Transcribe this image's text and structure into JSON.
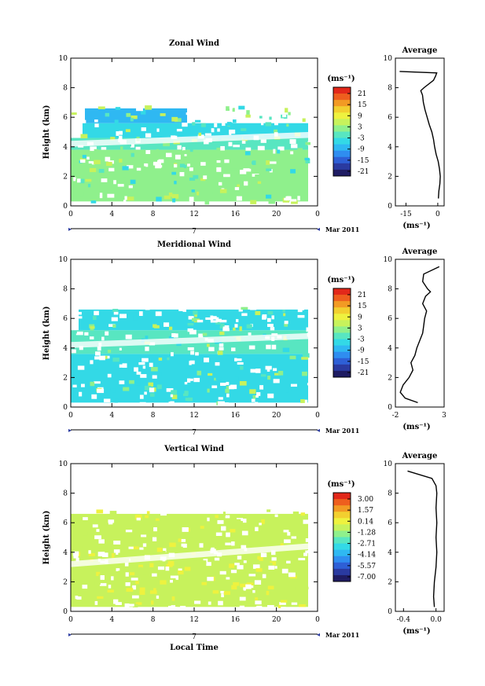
{
  "xlabel": "Local Time",
  "date_label": "7",
  "month_label": "Mar 2011",
  "average_title": "Average",
  "unit_label": "(ms⁻¹)",
  "ylabel": "Height (km)",
  "x_ticks": [
    "0",
    "4",
    "8",
    "12",
    "16",
    "20",
    "0"
  ],
  "y_ticks": [
    "0",
    "2",
    "4",
    "6",
    "8",
    "10"
  ],
  "colormap": [
    "#1f1c63",
    "#2a3aa0",
    "#2e5fd6",
    "#2f8df0",
    "#2fb8f2",
    "#33d9e6",
    "#58e6c1",
    "#8ff08c",
    "#c7f25c",
    "#eef23f",
    "#f2cf2f",
    "#f29a24",
    "#ee5e1e",
    "#e2281a"
  ],
  "panels": [
    {
      "id": "zonal",
      "title": "Zonal Wind",
      "cbar_ticks": [
        "21",
        "15",
        "9",
        "3",
        "-3",
        "-9",
        "-15",
        "-21"
      ],
      "avg_x_ticks": [
        "-15",
        "0"
      ],
      "avg_xlim": [
        -20,
        3
      ],
      "avg_ylim": [
        0,
        10
      ],
      "avg_profile": [
        [
          0.5,
          0.3
        ],
        [
          1,
          0.5
        ],
        [
          1.5,
          1
        ],
        [
          2,
          1.2
        ],
        [
          2.5,
          0.8
        ],
        [
          3,
          0.2
        ],
        [
          3.5,
          -0.8
        ],
        [
          4,
          -1.5
        ],
        [
          4.5,
          -2
        ],
        [
          5,
          -2.8
        ],
        [
          5.5,
          -4
        ],
        [
          6,
          -5
        ],
        [
          6.5,
          -6
        ],
        [
          7,
          -6.8
        ],
        [
          7.5,
          -7.2
        ],
        [
          7.8,
          -8
        ],
        [
          8,
          -6.5
        ],
        [
          8.5,
          -2
        ],
        [
          8.8,
          -1
        ],
        [
          9,
          -0.5
        ],
        [
          9.1,
          -18
        ]
      ]
    },
    {
      "id": "meridional",
      "title": "Meridional Wind",
      "cbar_ticks": [
        "21",
        "15",
        "9",
        "3",
        "-3",
        "-9",
        "-15",
        "-21"
      ],
      "avg_x_ticks": [
        "-2",
        "3"
      ],
      "avg_xlim": [
        -2,
        3
      ],
      "avg_ylim": [
        0,
        10
      ],
      "avg_profile": [
        [
          0.3,
          0.3
        ],
        [
          0.6,
          -1
        ],
        [
          1,
          -1.5
        ],
        [
          1.5,
          -1.2
        ],
        [
          2,
          -0.6
        ],
        [
          2.5,
          -0.2
        ],
        [
          3,
          -0.4
        ],
        [
          3.5,
          0
        ],
        [
          4,
          0.2
        ],
        [
          4.5,
          0.5
        ],
        [
          5,
          0.8
        ],
        [
          5.5,
          0.9
        ],
        [
          6,
          1
        ],
        [
          6.5,
          1.2
        ],
        [
          7,
          0.8
        ],
        [
          7.5,
          1.1
        ],
        [
          7.8,
          1.6
        ],
        [
          8,
          1.3
        ],
        [
          8.5,
          0.8
        ],
        [
          9,
          0.9
        ],
        [
          9.5,
          2.5
        ]
      ]
    },
    {
      "id": "vertical",
      "title": "Vertical Wind",
      "cbar_ticks": [
        "3.00",
        "1.57",
        "0.14",
        "-1.28",
        "-2.71",
        "-4.14",
        "-5.57",
        "-7.00"
      ],
      "avg_x_ticks": [
        "-0.4",
        "0.0"
      ],
      "avg_xlim": [
        -0.5,
        0.1
      ],
      "avg_ylim": [
        0,
        10
      ],
      "avg_profile": [
        [
          0.3,
          -0.02
        ],
        [
          1,
          -0.03
        ],
        [
          2,
          -0.02
        ],
        [
          3,
          0
        ],
        [
          4,
          0.01
        ],
        [
          5,
          0
        ],
        [
          6,
          0.01
        ],
        [
          7,
          0
        ],
        [
          8,
          0.01
        ],
        [
          8.5,
          0
        ],
        [
          9,
          -0.05
        ],
        [
          9.5,
          -0.35
        ]
      ]
    }
  ]
}
